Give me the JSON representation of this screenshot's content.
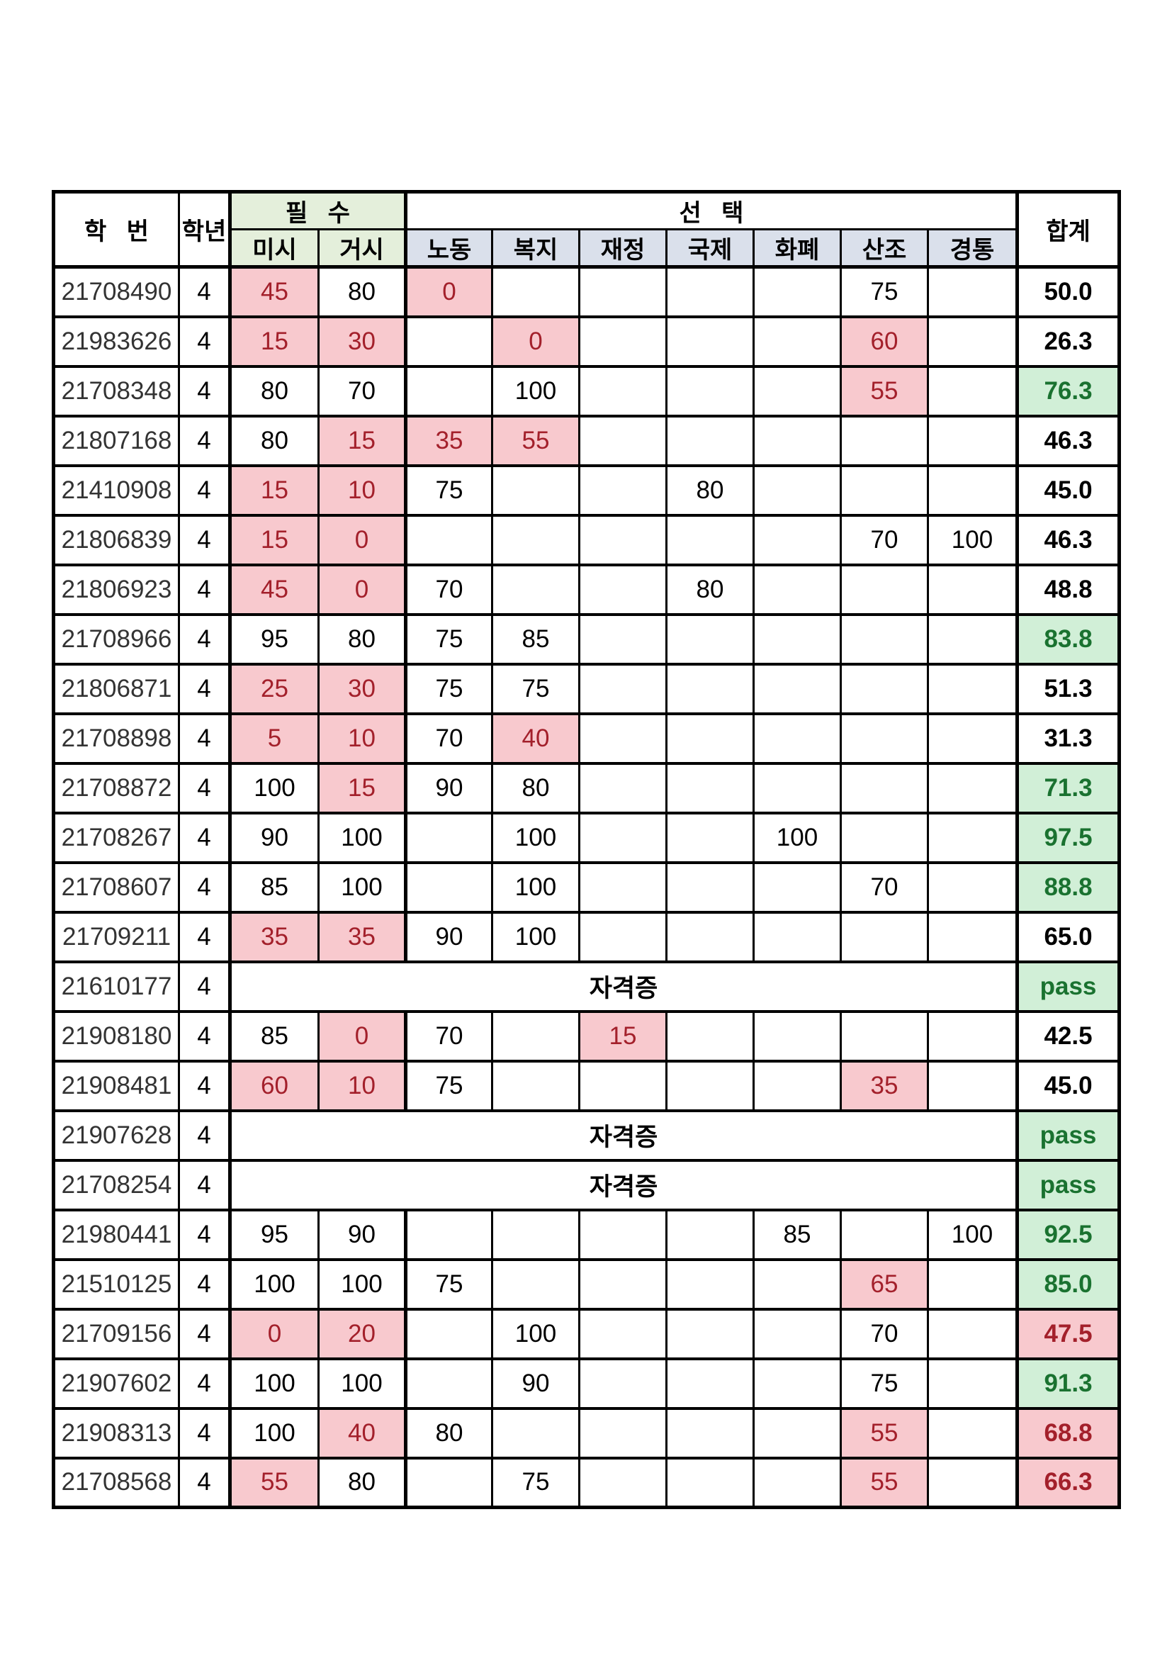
{
  "table": {
    "header": {
      "id_label": "학   번",
      "year_label": "학년",
      "required_label": "필   수",
      "elective_label": "선   택",
      "total_label": "합계",
      "required_subjects": [
        "미시",
        "거시"
      ],
      "elective_subjects": [
        "노동",
        "복지",
        "재정",
        "국제",
        "화폐",
        "산조",
        "경통"
      ]
    },
    "cert_label": "자격증",
    "pass_label": "pass",
    "colors": {
      "fail_bg": "#F8C9CE",
      "fail_text": "#A3202B",
      "pass_bg": "#D1EFD7",
      "pass_text": "#1A7230",
      "required_header_bg": "#E4EFDB",
      "elective_header_bg": "#DAE0EB",
      "border": "#000000"
    },
    "rows": [
      {
        "id": "21708490",
        "year": "4",
        "scores": {
          "미시": {
            "v": "45",
            "fail": true
          },
          "거시": {
            "v": "80"
          },
          "노동": {
            "v": "0",
            "fail": true
          },
          "산조": {
            "v": "75"
          }
        },
        "total": {
          "v": "50.0",
          "style": "plain"
        }
      },
      {
        "id": "21983626",
        "year": "4",
        "scores": {
          "미시": {
            "v": "15",
            "fail": true
          },
          "거시": {
            "v": "30",
            "fail": true
          },
          "복지": {
            "v": "0",
            "fail": true
          },
          "산조": {
            "v": "60",
            "fail": true
          }
        },
        "total": {
          "v": "26.3",
          "style": "plain"
        }
      },
      {
        "id": "21708348",
        "year": "4",
        "scores": {
          "미시": {
            "v": "80"
          },
          "거시": {
            "v": "70"
          },
          "복지": {
            "v": "100"
          },
          "산조": {
            "v": "55",
            "fail": true
          }
        },
        "total": {
          "v": "76.3",
          "style": "green"
        }
      },
      {
        "id": "21807168",
        "year": "4",
        "scores": {
          "미시": {
            "v": "80"
          },
          "거시": {
            "v": "15",
            "fail": true
          },
          "노동": {
            "v": "35",
            "fail": true
          },
          "복지": {
            "v": "55",
            "fail": true
          }
        },
        "total": {
          "v": "46.3",
          "style": "plain"
        }
      },
      {
        "id": "21410908",
        "year": "4",
        "scores": {
          "미시": {
            "v": "15",
            "fail": true
          },
          "거시": {
            "v": "10",
            "fail": true
          },
          "노동": {
            "v": "75"
          },
          "국제": {
            "v": "80"
          }
        },
        "total": {
          "v": "45.0",
          "style": "plain"
        }
      },
      {
        "id": "21806839",
        "year": "4",
        "scores": {
          "미시": {
            "v": "15",
            "fail": true
          },
          "거시": {
            "v": "0",
            "fail": true
          },
          "산조": {
            "v": "70"
          },
          "경통": {
            "v": "100"
          }
        },
        "total": {
          "v": "46.3",
          "style": "plain"
        }
      },
      {
        "id": "21806923",
        "year": "4",
        "scores": {
          "미시": {
            "v": "45",
            "fail": true
          },
          "거시": {
            "v": "0",
            "fail": true
          },
          "노동": {
            "v": "70"
          },
          "국제": {
            "v": "80"
          }
        },
        "total": {
          "v": "48.8",
          "style": "plain"
        }
      },
      {
        "id": "21708966",
        "year": "4",
        "scores": {
          "미시": {
            "v": "95"
          },
          "거시": {
            "v": "80"
          },
          "노동": {
            "v": "75"
          },
          "복지": {
            "v": "85"
          }
        },
        "total": {
          "v": "83.8",
          "style": "green"
        }
      },
      {
        "id": "21806871",
        "year": "4",
        "scores": {
          "미시": {
            "v": "25",
            "fail": true
          },
          "거시": {
            "v": "30",
            "fail": true
          },
          "노동": {
            "v": "75"
          },
          "복지": {
            "v": "75"
          }
        },
        "total": {
          "v": "51.3",
          "style": "plain"
        }
      },
      {
        "id": "21708898",
        "year": "4",
        "scores": {
          "미시": {
            "v": "5",
            "fail": true
          },
          "거시": {
            "v": "10",
            "fail": true
          },
          "노동": {
            "v": "70"
          },
          "복지": {
            "v": "40",
            "fail": true
          }
        },
        "total": {
          "v": "31.3",
          "style": "plain"
        }
      },
      {
        "id": "21708872",
        "year": "4",
        "scores": {
          "미시": {
            "v": "100"
          },
          "거시": {
            "v": "15",
            "fail": true
          },
          "노동": {
            "v": "90"
          },
          "복지": {
            "v": "80"
          }
        },
        "total": {
          "v": "71.3",
          "style": "green"
        }
      },
      {
        "id": "21708267",
        "year": "4",
        "scores": {
          "미시": {
            "v": "90"
          },
          "거시": {
            "v": "100"
          },
          "복지": {
            "v": "100"
          },
          "화폐": {
            "v": "100"
          }
        },
        "total": {
          "v": "97.5",
          "style": "green"
        }
      },
      {
        "id": "21708607",
        "year": "4",
        "scores": {
          "미시": {
            "v": "85"
          },
          "거시": {
            "v": "100"
          },
          "복지": {
            "v": "100"
          },
          "산조": {
            "v": "70"
          }
        },
        "total": {
          "v": "88.8",
          "style": "green"
        }
      },
      {
        "id": "21709211",
        "year": "4",
        "scores": {
          "미시": {
            "v": "35",
            "fail": true
          },
          "거시": {
            "v": "35",
            "fail": true
          },
          "노동": {
            "v": "90"
          },
          "복지": {
            "v": "100"
          }
        },
        "total": {
          "v": "65.0",
          "style": "plain"
        }
      },
      {
        "id": "21610177",
        "year": "4",
        "cert": true,
        "total": {
          "v": "pass",
          "style": "pass"
        }
      },
      {
        "id": "21908180",
        "year": "4",
        "scores": {
          "미시": {
            "v": "85"
          },
          "거시": {
            "v": "0",
            "fail": true
          },
          "노동": {
            "v": "70"
          },
          "재정": {
            "v": "15",
            "fail": true
          }
        },
        "total": {
          "v": "42.5",
          "style": "plain"
        }
      },
      {
        "id": "21908481",
        "year": "4",
        "scores": {
          "미시": {
            "v": "60",
            "fail": true
          },
          "거시": {
            "v": "10",
            "fail": true
          },
          "노동": {
            "v": "75"
          },
          "산조": {
            "v": "35",
            "fail": true
          }
        },
        "total": {
          "v": "45.0",
          "style": "plain"
        }
      },
      {
        "id": "21907628",
        "year": "4",
        "cert": true,
        "total": {
          "v": "pass",
          "style": "pass"
        }
      },
      {
        "id": "21708254",
        "year": "4",
        "cert": true,
        "total": {
          "v": "pass",
          "style": "pass"
        }
      },
      {
        "id": "21980441",
        "year": "4",
        "scores": {
          "미시": {
            "v": "95"
          },
          "거시": {
            "v": "90"
          },
          "화폐": {
            "v": "85"
          },
          "경통": {
            "v": "100"
          }
        },
        "total": {
          "v": "92.5",
          "style": "green"
        }
      },
      {
        "id": "21510125",
        "year": "4",
        "scores": {
          "미시": {
            "v": "100"
          },
          "거시": {
            "v": "100"
          },
          "노동": {
            "v": "75"
          },
          "산조": {
            "v": "65",
            "fail": true
          }
        },
        "total": {
          "v": "85.0",
          "style": "green"
        }
      },
      {
        "id": "21709156",
        "year": "4",
        "scores": {
          "미시": {
            "v": "0",
            "fail": true
          },
          "거시": {
            "v": "20",
            "fail": true
          },
          "복지": {
            "v": "100"
          },
          "산조": {
            "v": "70"
          }
        },
        "total": {
          "v": "47.5",
          "style": "red"
        }
      },
      {
        "id": "21907602",
        "year": "4",
        "scores": {
          "미시": {
            "v": "100"
          },
          "거시": {
            "v": "100"
          },
          "복지": {
            "v": "90"
          },
          "산조": {
            "v": "75"
          }
        },
        "total": {
          "v": "91.3",
          "style": "green"
        }
      },
      {
        "id": "21908313",
        "year": "4",
        "scores": {
          "미시": {
            "v": "100"
          },
          "거시": {
            "v": "40",
            "fail": true
          },
          "노동": {
            "v": "80"
          },
          "산조": {
            "v": "55",
            "fail": true
          }
        },
        "total": {
          "v": "68.8",
          "style": "red"
        }
      },
      {
        "id": "21708568",
        "year": "4",
        "scores": {
          "미시": {
            "v": "55",
            "fail": true
          },
          "거시": {
            "v": "80"
          },
          "복지": {
            "v": "75"
          },
          "산조": {
            "v": "55",
            "fail": true
          }
        },
        "total": {
          "v": "66.3",
          "style": "red"
        }
      }
    ]
  }
}
